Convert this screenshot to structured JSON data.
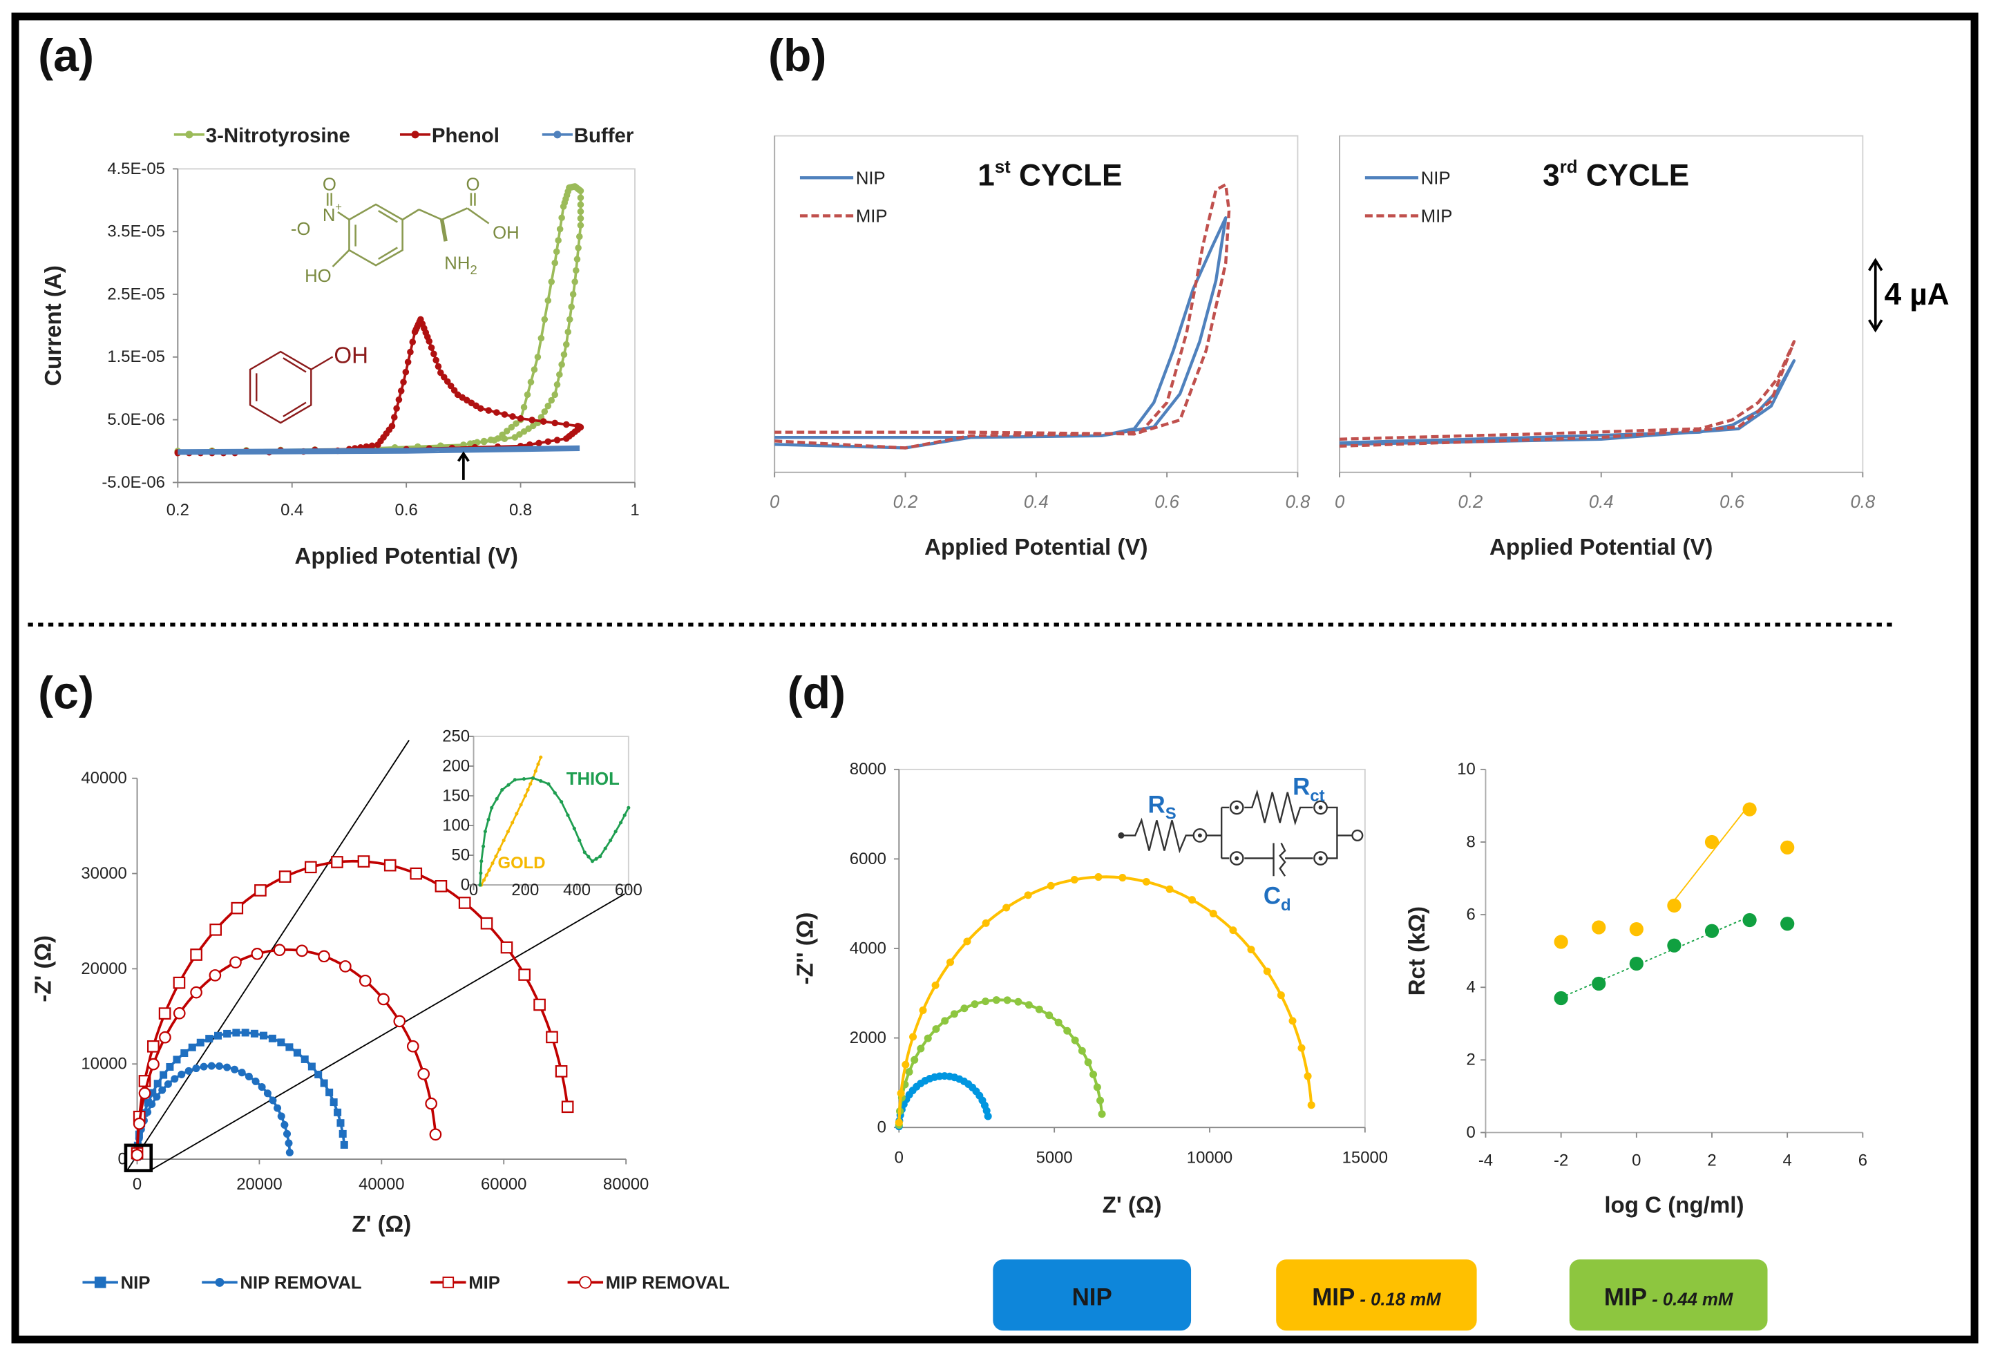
{
  "panel_labels": {
    "a": "(a)",
    "b": "(b)",
    "c": "(c)",
    "d": "(d)"
  },
  "structures": {
    "nitrotyrosine": {
      "o1": "O",
      "nplus": "N",
      "plus": "+",
      "ominus": "-O",
      "o2": "O",
      "oh": "OH",
      "nh2": "NH",
      "nh2_sub": "2",
      "ho": "HO"
    },
    "phenol": {
      "oh": "OH"
    }
  },
  "scale_bar": {
    "label": "4 µA"
  },
  "colors": {
    "nitrotyrosine": "#9BBB59",
    "phenol": "#B01010",
    "buffer": "#4F81BD",
    "nip_b": "#4F81BD",
    "mip_b": "#C0504D",
    "nip_c": "#1F6FC0",
    "mip_c": "#C00000",
    "nip_d": "#0096E0",
    "mip018": "#FFC000",
    "mip044": "#8DC63F",
    "green_d2": "#10A040"
  },
  "chart_data": [
    {
      "id": "a",
      "type": "line",
      "xlabel": "Applied Potential (V)",
      "ylabel": "Current (A)",
      "xlim": [
        0.2,
        1
      ],
      "ylim": [
        -5e-06,
        4.5e-05
      ],
      "x_ticks": [
        "0.2",
        "0.4",
        "0.6",
        "0.8",
        "1"
      ],
      "y_ticks": [
        "4.5E-05",
        "3.5E-05",
        "2.5E-05",
        "1.5E-05",
        "5.0E-06",
        "-5.0E-06"
      ],
      "annotation": "arrow at 0.7 V",
      "series": [
        {
          "name": "3-Nitrotyrosine",
          "points": [
            [
              0.2,
              0
            ],
            [
              0.5,
              2e-07
            ],
            [
              0.7,
              1e-06
            ],
            [
              0.76,
              2e-06
            ],
            [
              0.8,
              5e-06
            ],
            [
              0.83,
              1.5e-05
            ],
            [
              0.86,
              3e-05
            ],
            [
              0.875,
              3.9e-05
            ],
            [
              0.885,
              4.2e-05
            ],
            [
              0.895,
              4.22e-05
            ],
            [
              0.905,
              4.15e-05
            ],
            [
              0.905,
              3.6e-05
            ],
            [
              0.895,
              2.7e-05
            ],
            [
              0.88,
              1.7e-05
            ],
            [
              0.86,
              9e-06
            ],
            [
              0.83,
              4.5e-06
            ],
            [
              0.79,
              2.2e-06
            ],
            [
              0.7,
              1e-06
            ],
            [
              0.5,
              3e-07
            ],
            [
              0.2,
              0
            ]
          ]
        },
        {
          "name": "Phenol",
          "points": [
            [
              0.2,
              -2e-07
            ],
            [
              0.5,
              3e-07
            ],
            [
              0.55,
              1e-06
            ],
            [
              0.575,
              4e-06
            ],
            [
              0.595,
              1.1e-05
            ],
            [
              0.615,
              1.9e-05
            ],
            [
              0.625,
              2.1e-05
            ],
            [
              0.64,
              1.75e-05
            ],
            [
              0.66,
              1.25e-05
            ],
            [
              0.69,
              9e-06
            ],
            [
              0.73,
              6.8e-06
            ],
            [
              0.8,
              5.2e-06
            ],
            [
              0.9,
              4e-06
            ],
            [
              0.905,
              3.8e-06
            ],
            [
              0.88,
              2e-06
            ],
            [
              0.8,
              8e-07
            ],
            [
              0.6,
              3e-07
            ],
            [
              0.3,
              -3e-07
            ],
            [
              0.2,
              -3e-07
            ]
          ]
        },
        {
          "name": "Buffer",
          "points": [
            [
              0.2,
              0
            ],
            [
              0.6,
              2e-07
            ],
            [
              0.9,
              6e-07
            ],
            [
              0.9,
              3e-07
            ],
            [
              0.6,
              -1e-07
            ],
            [
              0.2,
              -3e-07
            ]
          ]
        }
      ]
    },
    {
      "id": "b1",
      "type": "line",
      "title_num": "1",
      "title_sup": "st",
      "title_rest": " CYCLE",
      "xlabel": "Applied Potential (V)",
      "xlim": [
        0,
        0.8
      ],
      "ylim": [
        -2,
        17.3
      ],
      "y_unit": "µA",
      "x_ticks": [
        "0",
        "0.2",
        "0.4",
        "0.6",
        "0.8"
      ],
      "series": [
        {
          "name": "NIP",
          "points": [
            [
              0,
              -0.4
            ],
            [
              0.2,
              -0.6
            ],
            [
              0.3,
              0
            ],
            [
              0.5,
              0.1
            ],
            [
              0.55,
              0.5
            ],
            [
              0.58,
              2
            ],
            [
              0.61,
              5
            ],
            [
              0.64,
              8.5
            ],
            [
              0.67,
              11
            ],
            [
              0.69,
              12.6
            ],
            [
              0.69,
              12.6
            ],
            [
              0.675,
              9
            ],
            [
              0.65,
              5.5
            ],
            [
              0.62,
              2.5
            ],
            [
              0.58,
              0.6
            ],
            [
              0.5,
              0.1
            ],
            [
              0.3,
              0
            ],
            [
              0,
              0
            ]
          ]
        },
        {
          "name": "MIP",
          "points": [
            [
              0,
              -0.2
            ],
            [
              0.2,
              -0.6
            ],
            [
              0.3,
              0.1
            ],
            [
              0.5,
              0.2
            ],
            [
              0.56,
              0.3
            ],
            [
              0.6,
              2
            ],
            [
              0.63,
              6
            ],
            [
              0.655,
              11
            ],
            [
              0.675,
              14.2
            ],
            [
              0.69,
              14.5
            ],
            [
              0.695,
              13
            ],
            [
              0.69,
              10
            ],
            [
              0.66,
              5
            ],
            [
              0.62,
              1
            ],
            [
              0.55,
              0.2
            ],
            [
              0.3,
              0.3
            ],
            [
              0,
              0.3
            ]
          ]
        }
      ]
    },
    {
      "id": "b3",
      "type": "line",
      "title_num": "3",
      "title_sup": "rd",
      "title_rest": " CYCLE",
      "xlabel": "Applied Potential (V)",
      "xlim": [
        0,
        0.8
      ],
      "ylim": [
        -2,
        17.3
      ],
      "y_unit": "µA",
      "x_ticks": [
        "0",
        "0.2",
        "0.4",
        "0.6",
        "0.8"
      ],
      "series": [
        {
          "name": "NIP",
          "points": [
            [
              0,
              -0.3
            ],
            [
              0.3,
              0
            ],
            [
              0.55,
              0.3
            ],
            [
              0.6,
              0.7
            ],
            [
              0.64,
              1.5
            ],
            [
              0.67,
              2.7
            ],
            [
              0.695,
              4.4
            ],
            [
              0.66,
              1.8
            ],
            [
              0.61,
              0.5
            ],
            [
              0.4,
              -0.1
            ],
            [
              0,
              -0.4
            ]
          ]
        },
        {
          "name": "MIP",
          "points": [
            [
              0,
              -0.1
            ],
            [
              0.3,
              0.2
            ],
            [
              0.55,
              0.5
            ],
            [
              0.6,
              1
            ],
            [
              0.64,
              2
            ],
            [
              0.67,
              3.4
            ],
            [
              0.695,
              5.5
            ],
            [
              0.66,
              2.1
            ],
            [
              0.61,
              0.6
            ],
            [
              0.4,
              0
            ],
            [
              0,
              -0.5
            ]
          ]
        }
      ]
    },
    {
      "id": "c",
      "type": "scatter-line",
      "xlabel": "Z' (Ω)",
      "ylabel": "-Z' (Ω)",
      "xlim": [
        0,
        80000
      ],
      "ylim": [
        0,
        40000
      ],
      "x_ticks": [
        "0",
        "20000",
        "40000",
        "60000",
        "80000"
      ],
      "y_ticks": [
        "0",
        "10000",
        "20000",
        "30000",
        "40000"
      ],
      "series": [
        {
          "name": "NIP",
          "rct": 34000,
          "peak": 13300,
          "end_z": 1500,
          "markers": 34
        },
        {
          "name": "NIP REMOVAL",
          "rct": 25000,
          "peak": 9800,
          "end_z": 700,
          "markers": 30
        },
        {
          "name": "MIP",
          "rct": 71000,
          "peak": 31300,
          "end_z": 5500,
          "markers": 24
        },
        {
          "name": "MIP REMOVAL",
          "rct": 49000,
          "peak": 22000,
          "end_z": 2600,
          "markers": 20
        }
      ],
      "inset": {
        "xlim": [
          0,
          600
        ],
        "ylim": [
          0,
          250
        ],
        "x_ticks": [
          "0",
          "200",
          "400",
          "600"
        ],
        "y_ticks": [
          "0",
          "50",
          "100",
          "150",
          "200",
          "250"
        ],
        "series": [
          {
            "name": "GOLD",
            "points": [
              [
                30,
                0
              ],
              [
                60,
                25
              ],
              [
                100,
                60
              ],
              [
                150,
                105
              ],
              [
                200,
                150
              ],
              [
                230,
                180
              ],
              [
                260,
                215
              ]
            ]
          },
          {
            "name": "THIOL",
            "points": [
              [
                25,
                0
              ],
              [
                30,
                40
              ],
              [
                45,
                90
              ],
              [
                70,
                130
              ],
              [
                110,
                160
              ],
              [
                160,
                177
              ],
              [
                230,
                180
              ],
              [
                290,
                170
              ],
              [
                340,
                140
              ],
              [
                390,
                95
              ],
              [
                430,
                55
              ],
              [
                460,
                40
              ],
              [
                490,
                48
              ],
              [
                530,
                75
              ],
              [
                570,
                105
              ],
              [
                600,
                130
              ]
            ]
          }
        ]
      }
    },
    {
      "id": "d1",
      "type": "scatter-line",
      "xlabel": "Z' (Ω)",
      "ylabel": "-Z'' (Ω)",
      "xlim": [
        0,
        15000
      ],
      "ylim": [
        0,
        8000
      ],
      "x_ticks": [
        "0",
        "5000",
        "10000",
        "15000"
      ],
      "y_ticks": [
        "0",
        "2000",
        "4000",
        "6000",
        "8000"
      ],
      "circuit": {
        "rs": "R",
        "rs_sub": "S",
        "rct": "R",
        "rct_sub": "ct",
        "cd": "C",
        "cd_sub": "d"
      },
      "series": [
        {
          "name": "NIP",
          "rct": 2900,
          "peak": 1150,
          "end_z": 250,
          "markers": 26
        },
        {
          "name": "MIP - 0.44 mM",
          "rct": 6550,
          "peak": 2850,
          "end_z": 300,
          "markers": 28
        },
        {
          "name": "MIP - 0.18 mM",
          "rct": 13300,
          "peak": 5600,
          "end_z": 500,
          "markers": 26
        }
      ]
    },
    {
      "id": "d2",
      "type": "scatter",
      "xlabel": "log C (ng/ml)",
      "ylabel": "Rct (kΩ)",
      "xlim": [
        -4,
        6
      ],
      "ylim": [
        0,
        10
      ],
      "x_ticks": [
        "-4",
        "-2",
        "0",
        "2",
        "4",
        "6"
      ],
      "y_ticks": [
        "0",
        "2",
        "4",
        "6",
        "8",
        "10"
      ],
      "series": [
        {
          "name": "MIP - 0.18 mM",
          "x": [
            -2,
            -1,
            0,
            1,
            2,
            3,
            4
          ],
          "y": [
            5.25,
            5.65,
            5.6,
            6.25,
            8.0,
            8.9,
            7.85
          ],
          "fit_range": [
            1,
            3
          ]
        },
        {
          "name": "MIP - 0.44 mM",
          "x": [
            -2,
            -1,
            0,
            1,
            2,
            3,
            4
          ],
          "y": [
            3.7,
            4.1,
            4.65,
            5.15,
            5.55,
            5.85,
            5.75
          ],
          "fit_range": [
            -2,
            3
          ]
        }
      ]
    }
  ],
  "legend_d": {
    "nip": "NIP",
    "mip018": "MIP",
    "mip018_conc": " - 0.18 mM",
    "mip044": "MIP",
    "mip044_conc": " - 0.44 mM"
  }
}
